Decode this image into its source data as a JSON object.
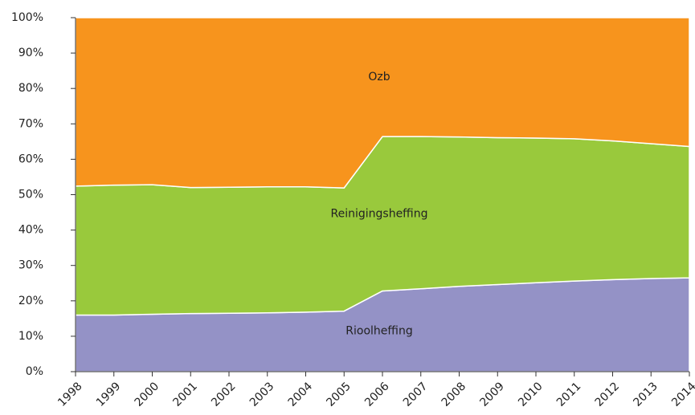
{
  "chart_data": {
    "type": "stacked-area-100",
    "categories": [
      "1998",
      "1999",
      "2000",
      "2001",
      "2002",
      "2003",
      "2004",
      "2005",
      "2006",
      "2007",
      "2008",
      "2009",
      "2010",
      "2011",
      "2012",
      "2013",
      "2014"
    ],
    "series": [
      {
        "name": "Rioolheffing",
        "color": "#9492c6",
        "values": [
          16.0,
          16.0,
          16.2,
          16.4,
          16.5,
          16.6,
          16.8,
          17.1,
          22.8,
          23.4,
          24.1,
          24.6,
          25.1,
          25.6,
          26.0,
          26.3,
          26.5
        ]
      },
      {
        "name": "Reinigingsheffing",
        "color": "#99c93c",
        "values": [
          36.4,
          36.7,
          36.6,
          35.6,
          35.6,
          35.6,
          35.4,
          34.8,
          43.6,
          43.0,
          42.2,
          41.5,
          40.9,
          40.2,
          39.2,
          38.1,
          37.1
        ]
      },
      {
        "name": "Ozb",
        "color": "#f7941d",
        "values": [
          47.6,
          47.3,
          47.2,
          48.0,
          47.9,
          47.8,
          47.8,
          48.1,
          33.6,
          33.6,
          33.7,
          33.9,
          34.0,
          34.2,
          34.8,
          35.6,
          36.4
        ]
      }
    ],
    "ylim": [
      0,
      100
    ],
    "yticks": [
      {
        "value": 0,
        "label": "0%"
      },
      {
        "value": 10,
        "label": "10%"
      },
      {
        "value": 20,
        "label": "20%"
      },
      {
        "value": 30,
        "label": "30%"
      },
      {
        "value": 40,
        "label": "40%"
      },
      {
        "value": 50,
        "label": "50%"
      },
      {
        "value": 60,
        "label": "60%"
      },
      {
        "value": 70,
        "label": "70%"
      },
      {
        "value": 80,
        "label": "80%"
      },
      {
        "value": 90,
        "label": "90%"
      },
      {
        "value": 100,
        "label": "100%"
      }
    ]
  }
}
